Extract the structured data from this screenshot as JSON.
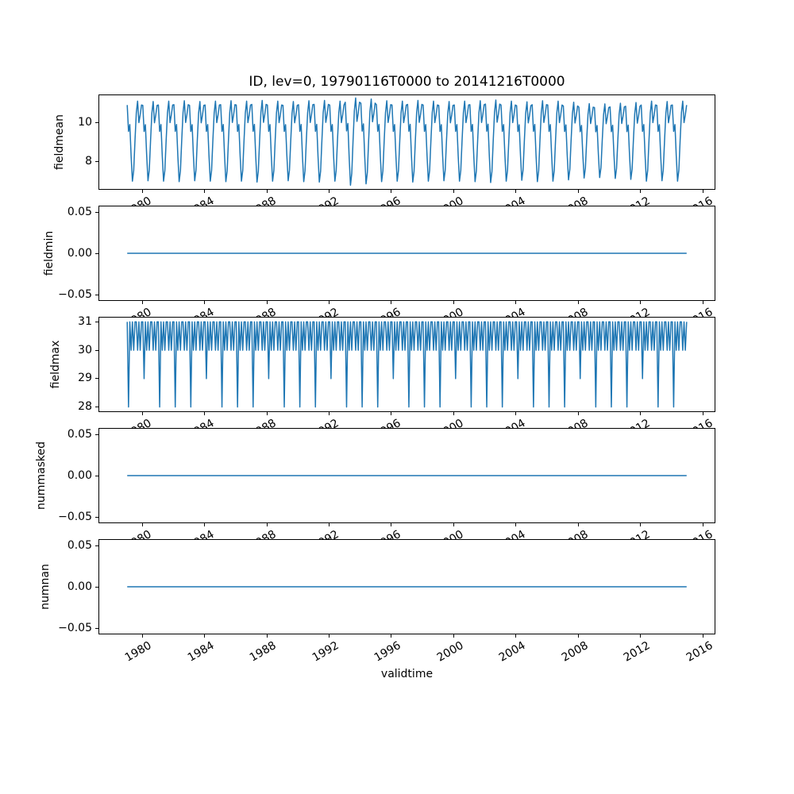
{
  "figure": {
    "title": "ID, lev=0, 19790116T0000 to 20141216T0000",
    "xlabel": "validtime",
    "line_color": "#1f77b4",
    "spine_color": "#000000",
    "background_color": "#ffffff",
    "xlim": [
      1977.246,
      2016.754
    ],
    "x_tick_years": [
      1980,
      1984,
      1988,
      1992,
      1996,
      2000,
      2004,
      2008,
      2012,
      2016
    ],
    "x_tick_labels": [
      "1980",
      "1984",
      "1988",
      "1992",
      "1996",
      "2000",
      "2004",
      "2008",
      "2012",
      "2016"
    ],
    "year_start": 1979,
    "year_end": 2014,
    "points_per_year": 12,
    "grid": false,
    "legend": false
  },
  "chart_data": [
    {
      "type": "line",
      "ylabel": "fieldmean",
      "ylim": [
        6.6,
        11.4
      ],
      "y_ticks": [
        {
          "v": 8,
          "label": "8"
        },
        {
          "v": 10,
          "label": "10"
        }
      ],
      "series": {
        "kind": "seasonal_climatology",
        "base": 9.3,
        "monthly_climatology": [
          10.9,
          9.55,
          9.9,
          8.3,
          7.0,
          7.55,
          9.1,
          10.5,
          11.1,
          10.0,
          10.4,
          10.9
        ],
        "year_amplitude": [
          1.0,
          0.99,
          1.0,
          1.01,
          0.99,
          1.0,
          1.01,
          1.0,
          1.02,
          1.0,
          0.99,
          1.01,
          1.02,
          1.0,
          1.09,
          1.06,
          1.01,
          1.0,
          1.02,
          1.0,
          0.99,
          1.0,
          1.01,
          1.03,
          1.0,
          0.98,
          1.01,
          1.0,
          0.97,
          0.93,
          0.92,
          0.94,
          0.96,
          1.0,
          0.99,
          1.0
        ]
      }
    },
    {
      "type": "line",
      "ylabel": "fieldmin",
      "ylim": [
        -0.0567,
        0.0567
      ],
      "y_ticks": [
        {
          "v": -0.05,
          "label": "−0.05"
        },
        {
          "v": 0,
          "label": "0.00"
        },
        {
          "v": 0.05,
          "label": "0.05"
        }
      ],
      "series": {
        "kind": "constant",
        "value": 0.0
      }
    },
    {
      "type": "line",
      "ylabel": "fieldmax",
      "ylim": [
        27.85,
        31.15
      ],
      "y_ticks": [
        {
          "v": 28,
          "label": "28"
        },
        {
          "v": 29,
          "label": "29"
        },
        {
          "v": 30,
          "label": "30"
        },
        {
          "v": 31,
          "label": "31"
        }
      ],
      "series": {
        "kind": "days_in_month",
        "month_days": [
          31,
          28,
          31,
          30,
          31,
          30,
          31,
          31,
          30,
          31,
          30,
          31
        ],
        "leap_february": 29,
        "leap_years": [
          1980,
          1984,
          1988,
          1992,
          1996,
          2000,
          2004,
          2008,
          2012
        ]
      }
    },
    {
      "type": "line",
      "ylabel": "nummasked",
      "ylim": [
        -0.0567,
        0.0567
      ],
      "y_ticks": [
        {
          "v": -0.05,
          "label": "−0.05"
        },
        {
          "v": 0,
          "label": "0.00"
        },
        {
          "v": 0.05,
          "label": "0.05"
        }
      ],
      "series": {
        "kind": "constant",
        "value": 0.0
      }
    },
    {
      "type": "line",
      "ylabel": "numnan",
      "ylim": [
        -0.0567,
        0.0567
      ],
      "y_ticks": [
        {
          "v": -0.05,
          "label": "−0.05"
        },
        {
          "v": 0,
          "label": "0.00"
        },
        {
          "v": 0.05,
          "label": "0.05"
        }
      ],
      "series": {
        "kind": "constant",
        "value": 0.0
      }
    }
  ]
}
